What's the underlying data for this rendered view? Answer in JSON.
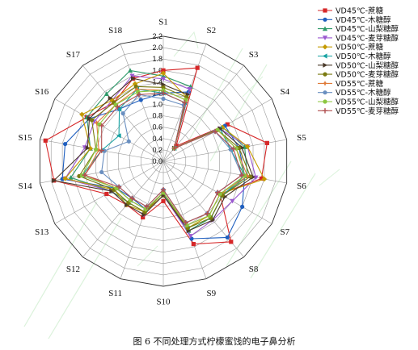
{
  "figure": {
    "caption": "图 6   不同处理方式柠檬蜜饯的电子鼻分析"
  },
  "chart_data": {
    "type": "radar",
    "axes": [
      "S1",
      "S2",
      "S3",
      "S4",
      "S5",
      "S6",
      "S7",
      "S8",
      "S9",
      "S10",
      "S11",
      "S12",
      "S13",
      "S14",
      "S15",
      "S16",
      "S17",
      "S18"
    ],
    "radial_range": [
      0,
      2.2
    ],
    "radial_ticks": [
      "0.0",
      "0.2",
      "0.4",
      "0.6",
      "0.8",
      "1.0",
      "1.2",
      "1.4",
      "1.6",
      "1.8",
      "2.0",
      "2.2"
    ],
    "grid": true,
    "legend_position": "right",
    "series": [
      {
        "name": "VD45℃-蔗糖",
        "color": "#d62728",
        "marker": "square",
        "values": [
          1.6,
          1.75,
          0.35,
          1.3,
          1.85,
          1.75,
          1.15,
          1.85,
          1.55,
          0.7,
          1.05,
          1.0,
          1.15,
          1.95,
          2.1,
          1.55,
          1.35,
          1.55
        ]
      },
      {
        "name": "VD45℃-木糖醇",
        "color": "#1f5fbf",
        "marker": "circle",
        "values": [
          1.2,
          1.3,
          0.3,
          1.25,
          1.35,
          1.45,
          1.6,
          1.75,
          1.45,
          0.55,
          0.9,
          0.85,
          0.95,
          1.8,
          1.75,
          1.5,
          1.2,
          1.15
        ]
      },
      {
        "name": "VD45℃-山梨糖醇",
        "color": "#2e9a6a",
        "marker": "triangle",
        "values": [
          1.5,
          1.4,
          0.3,
          1.2,
          1.45,
          1.5,
          1.2,
          1.3,
          1.3,
          0.6,
          0.95,
          0.95,
          1.05,
          1.65,
          1.3,
          1.55,
          1.55,
          1.7
        ]
      },
      {
        "name": "VD45℃-麦芽糖醇",
        "color": "#9b59d0",
        "marker": "triangle-down",
        "values": [
          1.45,
          1.35,
          0.3,
          1.15,
          1.5,
          1.65,
          1.4,
          1.35,
          1.4,
          0.6,
          1.0,
          1.0,
          1.05,
          1.75,
          1.4,
          1.4,
          1.4,
          1.6
        ]
      },
      {
        "name": "VD50℃-蔗糖",
        "color": "#c49a00",
        "marker": "diamond",
        "values": [
          1.55,
          1.2,
          0.3,
          1.2,
          1.5,
          1.8,
          1.15,
          1.25,
          1.25,
          0.6,
          0.95,
          1.0,
          1.0,
          1.75,
          1.3,
          1.65,
          1.4,
          1.45
        ]
      },
      {
        "name": "VD50℃-木糖醇",
        "color": "#17a2a2",
        "marker": "triangle-left",
        "values": [
          1.2,
          1.1,
          0.3,
          1.15,
          1.2,
          1.45,
          1.2,
          1.3,
          1.25,
          0.55,
          0.9,
          0.9,
          0.95,
          1.45,
          1.1,
          0.9,
          1.2,
          1.35
        ]
      },
      {
        "name": "VD50℃-山梨糖醇",
        "color": "#4a3a2a",
        "marker": "triangle-right",
        "values": [
          1.35,
          1.25,
          0.3,
          1.15,
          1.4,
          1.6,
          1.25,
          1.35,
          1.3,
          0.6,
          1.0,
          1.0,
          1.05,
          1.95,
          1.35,
          1.5,
          1.45,
          1.55
        ]
      },
      {
        "name": "VD50℃-麦芽糖醇",
        "color": "#7a7a10",
        "marker": "circle",
        "values": [
          1.3,
          1.2,
          0.3,
          1.1,
          1.35,
          1.55,
          1.2,
          1.3,
          1.25,
          0.55,
          0.95,
          0.95,
          1.0,
          1.5,
          1.2,
          1.45,
          1.35,
          1.4
        ]
      },
      {
        "name": "VD55℃-蔗糖",
        "color": "#e07b39",
        "marker": "star",
        "values": [
          1.25,
          1.15,
          0.3,
          1.1,
          1.3,
          1.5,
          1.15,
          1.25,
          1.2,
          0.55,
          0.9,
          0.9,
          0.95,
          1.4,
          1.15,
          1.35,
          1.3,
          1.35
        ]
      },
      {
        "name": "VD55℃-木糖醇",
        "color": "#6a8fc0",
        "marker": "circle",
        "values": [
          1.1,
          1.05,
          0.3,
          1.05,
          1.2,
          1.4,
          1.1,
          1.2,
          1.15,
          0.5,
          0.85,
          0.85,
          0.9,
          1.1,
          1.05,
          0.7,
          1.1,
          1.25
        ]
      },
      {
        "name": "VD55℃-山梨糖醇",
        "color": "#8cc63f",
        "marker": "circle",
        "values": [
          1.25,
          1.15,
          0.3,
          1.1,
          1.3,
          1.45,
          1.15,
          1.25,
          1.2,
          0.55,
          0.9,
          0.9,
          0.95,
          1.45,
          1.2,
          1.3,
          1.3,
          1.3
        ]
      },
      {
        "name": "VD55℃-麦芽糖醇",
        "color": "#b05050",
        "marker": "plus",
        "values": [
          1.2,
          1.1,
          0.3,
          1.05,
          1.25,
          1.4,
          1.1,
          1.2,
          1.15,
          0.5,
          0.85,
          0.85,
          0.9,
          1.4,
          1.1,
          1.25,
          1.25,
          1.25
        ]
      }
    ]
  }
}
